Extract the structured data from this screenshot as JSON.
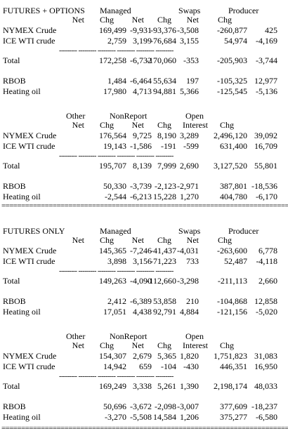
{
  "sections": [
    {
      "title": "FUTURES + OPTIONS",
      "block1": {
        "group_headers": [
          "Managed",
          "Swaps",
          "Producer"
        ],
        "column_headers": [
          "Net",
          "Chg",
          "Net",
          "Chg",
          "Net",
          "Chg"
        ],
        "rows": [
          {
            "label": "NYMEX Crude",
            "values": [
              "169,499",
              "-9,931",
              "-93,376",
              "-3,508",
              "-260,877",
              "425"
            ]
          },
          {
            "label": "ICE WTI crude",
            "values": [
              "2,759",
              "3,199",
              "-76,684",
              "3,155",
              "54,974",
              "-4,169"
            ]
          }
        ],
        "total": {
          "label": "Total",
          "values": [
            "172,258",
            "-6,732",
            "-170,060",
            "-353",
            "-205,903",
            "-3,744"
          ]
        },
        "extra_rows": [
          {
            "label": "RBOB",
            "values": [
              "1,484",
              "-6,464",
              "55,634",
              "197",
              "-105,325",
              "12,977"
            ]
          },
          {
            "label": "Heating oil",
            "values": [
              "17,980",
              "4,713",
              "94,881",
              "5,366",
              "-125,545",
              "-5,136"
            ]
          }
        ]
      },
      "block2": {
        "group_headers": [
          "Other",
          "NonReport",
          "Open"
        ],
        "column_headers": [
          "Net",
          "Chg",
          "Net",
          "Chg",
          "Interest",
          "Chg"
        ],
        "rows": [
          {
            "label": "NYMEX Crude",
            "values": [
              "176,564",
              "9,725",
              "8,190",
              "3,289",
              "2,496,120",
              "39,092"
            ]
          },
          {
            "label": "ICE WTI crude",
            "values": [
              "19,143",
              "-1,586",
              "-191",
              "-599",
              "631,400",
              "16,709"
            ]
          }
        ],
        "total": {
          "label": "Total",
          "values": [
            "195,707",
            "8,139",
            "7,999",
            "2,690",
            "3,127,520",
            "55,801"
          ]
        },
        "extra_rows": [
          {
            "label": "RBOB",
            "values": [
              "50,330",
              "-3,739",
              "-2,123",
              "-2,971",
              "387,801",
              "-18,536"
            ]
          },
          {
            "label": "Heating oil",
            "values": [
              "-2,544",
              "-6,213",
              "15,228",
              "1,270",
              "404,780",
              "-6,170"
            ]
          }
        ]
      }
    },
    {
      "title": "FUTURES ONLY",
      "block1": {
        "group_headers": [
          "Managed",
          "Swaps",
          "Producer"
        ],
        "column_headers": [
          "Net",
          "Chg",
          "Net",
          "Chg",
          "Net",
          "Chg"
        ],
        "rows": [
          {
            "label": "NYMEX Crude",
            "values": [
              "145,365",
              "-7,246",
              "-41,437",
              "-4,031",
              "-263,600",
              "6,778"
            ]
          },
          {
            "label": "ICE WTI crude",
            "values": [
              "3,898",
              "3,156",
              "-71,223",
              "733",
              "52,487",
              "-4,118"
            ]
          }
        ],
        "total": {
          "label": "Total",
          "values": [
            "149,263",
            "-4,090",
            "-112,660",
            "-3,298",
            "-211,113",
            "2,660"
          ]
        },
        "extra_rows": [
          {
            "label": "RBOB",
            "values": [
              "2,412",
              "-6,389",
              "53,858",
              "210",
              "-104,868",
              "12,858"
            ]
          },
          {
            "label": "Heating oil",
            "values": [
              "17,051",
              "4,438",
              "92,791",
              "4,884",
              "-121,156",
              "-5,020"
            ]
          }
        ]
      },
      "block2": {
        "group_headers": [
          "Other",
          "NonReport",
          "Open"
        ],
        "column_headers": [
          "Net",
          "Chg",
          "Net",
          "Chg",
          "Interest",
          "Chg"
        ],
        "rows": [
          {
            "label": "NYMEX Crude",
            "values": [
              "154,307",
              "2,679",
              "5,365",
              "1,820",
              "1,751,823",
              "31,083"
            ]
          },
          {
            "label": "ICE WTI crude",
            "values": [
              "14,942",
              "659",
              "-104",
              "-430",
              "446,351",
              "16,950"
            ]
          }
        ],
        "total": {
          "label": "Total",
          "values": [
            "169,249",
            "3,338",
            "5,261",
            "1,390",
            "2,198,174",
            "48,033"
          ]
        },
        "extra_rows": [
          {
            "label": "RBOB",
            "values": [
              "50,696",
              "-3,672",
              "-2,098",
              "-3,007",
              "377,609",
              "-18,237"
            ]
          },
          {
            "label": "Heating oil",
            "values": [
              "-3,270",
              "-5,508",
              "14,584",
              "1,206",
              "375,277",
              "-6,580"
            ]
          }
        ]
      }
    }
  ],
  "dash_rule": "--------- --------- --------- --------- --------- ---------",
  "double_rule": "==========================================================================="
}
